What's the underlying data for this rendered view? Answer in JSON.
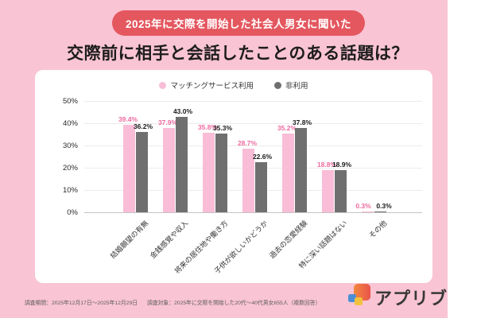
{
  "banner": {
    "label": "2025年に交際を開始した社会人男女に聞いた"
  },
  "title": "交際前に相手と会話したことのある話題は？",
  "chart_data": {
    "type": "bar",
    "title": "交際前に相手と会話したことのある話題は？",
    "categories": [
      "結婚願望の有無",
      "金銭感覚や収入",
      "将来の居住地や働き方",
      "子供が欲しいかどうか",
      "過去の恋愛経験",
      "特に深い話題はない",
      "その他"
    ],
    "series": [
      {
        "name": "マッチングサービス利用",
        "color": "#F9BDD7",
        "label_color": "#EF6A9E",
        "values": [
          39.4,
          37.9,
          35.8,
          28.7,
          35.2,
          18.8,
          0.3
        ]
      },
      {
        "name": "非利用",
        "color": "#6F6F6F",
        "label_color": "#1A1A1A",
        "values": [
          36.2,
          43.0,
          35.3,
          22.6,
          37.8,
          18.9,
          0.3
        ]
      }
    ],
    "xlabel": "",
    "ylabel": "",
    "ylim": [
      0,
      50
    ],
    "ytick_step": 10,
    "ytick_suffix": "%",
    "value_label_suffix": "%",
    "grid": true,
    "legend_position": "top"
  },
  "footer": {
    "period": "調査期間：2025年12月17日～2025年12月29日",
    "target": "調査対象：2025年に交際を開始した20代～40代男女655人（複数回答）"
  },
  "logo": {
    "label": "アプリブ"
  },
  "colors": {
    "background": "#F9C4D4",
    "banner": "#E4575F",
    "card": "#FFFFFF",
    "bar_pink": "#F9BDD7",
    "bar_gray": "#6F6F6F",
    "pink_value_label": "#EF6A9E",
    "dark_value_label": "#1A1A1A",
    "logo_orange": "#F1883C",
    "logo_red": "#E9544B",
    "logo_blue": "#4B8ED6",
    "logo_yellow": "#F2C23E"
  }
}
